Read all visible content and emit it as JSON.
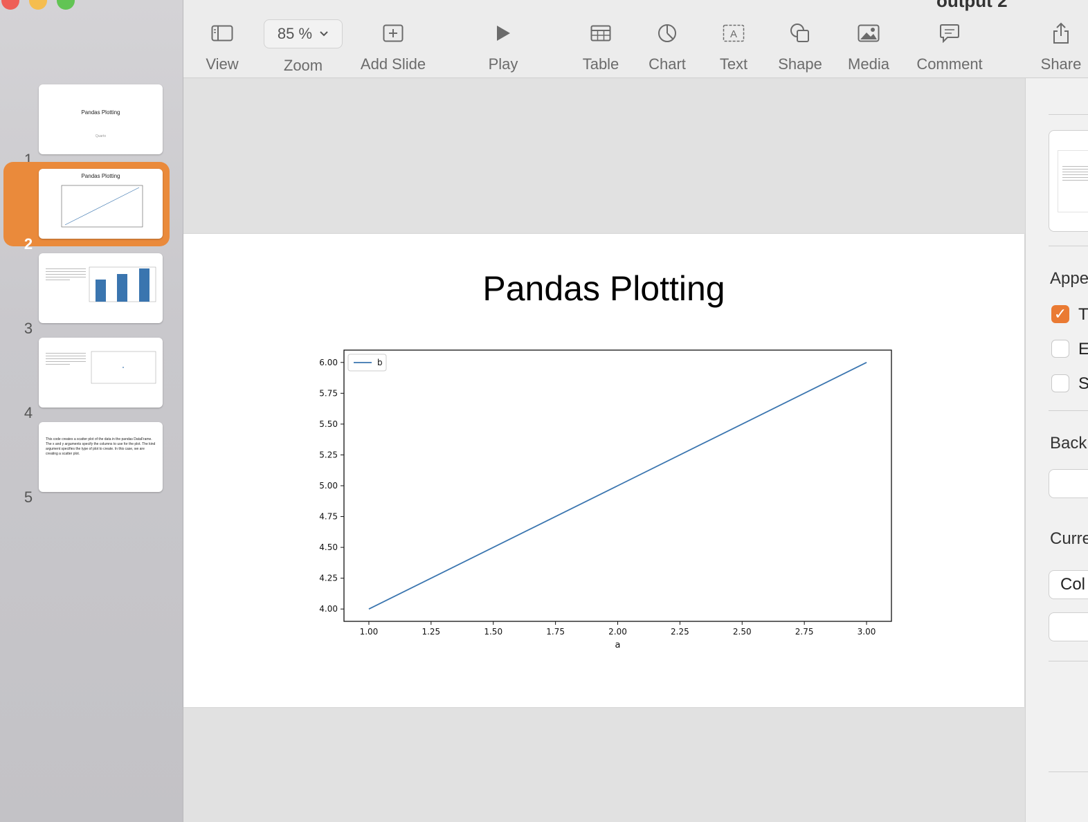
{
  "window": {
    "title": "output 2"
  },
  "toolbar": {
    "view": "View",
    "zoom_value": "85 %",
    "zoom": "Zoom",
    "add_slide": "Add Slide",
    "play": "Play",
    "table": "Table",
    "chart": "Chart",
    "text": "Text",
    "shape": "Shape",
    "media": "Media",
    "comment": "Comment",
    "share": "Share"
  },
  "navigator": {
    "selected_index": 2,
    "slides": [
      {
        "number": "1",
        "title": "Pandas Plotting",
        "subtitle": "Quarto"
      },
      {
        "number": "2",
        "title": "Pandas Plotting"
      },
      {
        "number": "3"
      },
      {
        "number": "4"
      },
      {
        "number": "5",
        "text": "This code creates a scatter plot of the data in the pandas DataFrame. The x and y arguments specify the columns to use for the plot. The kind argument specifies the type of plot to create. In this case, we are creating a scatter plot."
      }
    ]
  },
  "slide": {
    "title": "Pandas Plotting"
  },
  "chart_data": {
    "type": "line",
    "xlabel": "a",
    "ylabel": "",
    "xlim": [
      0.9,
      3.1
    ],
    "ylim": [
      3.9,
      6.1
    ],
    "xticks": [
      "1.00",
      "1.25",
      "1.50",
      "1.75",
      "2.00",
      "2.25",
      "2.50",
      "2.75",
      "3.00"
    ],
    "yticks": [
      "4.00",
      "4.25",
      "4.50",
      "4.75",
      "5.00",
      "5.25",
      "5.50",
      "5.75",
      "6.00"
    ],
    "legend_position": "upper-left",
    "grid": false,
    "series": [
      {
        "name": "b",
        "x": [
          1,
          2,
          3
        ],
        "y": [
          4,
          5,
          6
        ],
        "color": "#3a75af"
      }
    ]
  },
  "inspector": {
    "appearance_heading": "Appe",
    "checkbox_1": "T",
    "checkbox_2": "E",
    "checkbox_3": "S",
    "background_heading": "Back",
    "current_heading": "Curre",
    "current_value": "Col"
  },
  "colors": {
    "accent": "#ea8a3b",
    "checkbox_on": "#ea7a33",
    "line_series": "#3a75af"
  }
}
